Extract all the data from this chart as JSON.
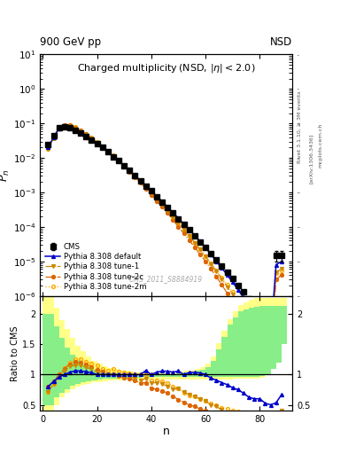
{
  "title_top_left": "900 GeV pp",
  "title_top_right": "NSD",
  "plot_title": "Charged multiplicity (NSD, |\\eta| < 2.0)",
  "xlabel": "n",
  "ylabel_main": "P_n",
  "ylabel_ratio": "Ratio to CMS",
  "rivet_label": "Rivet 3.1.10, ≥ 3M events",
  "arxiv_label": "[arXiv:1306.3436]",
  "mcplots_label": "mcplots.cern.ch",
  "watermark": "CMS_2011_S8884919",
  "cms_n": [
    2,
    4,
    6,
    8,
    10,
    12,
    14,
    16,
    18,
    20,
    22,
    24,
    26,
    28,
    30,
    32,
    34,
    36,
    38,
    40,
    42,
    44,
    46,
    48,
    50,
    52,
    54,
    56,
    58,
    60,
    62,
    64,
    66,
    68,
    70,
    72,
    74,
    76,
    78,
    80,
    82,
    84,
    86,
    88
  ],
  "cms_y": [
    0.025,
    0.045,
    0.075,
    0.082,
    0.075,
    0.063,
    0.052,
    0.042,
    0.033,
    0.026,
    0.02,
    0.015,
    0.011,
    0.0082,
    0.006,
    0.0043,
    0.0031,
    0.0022,
    0.0015,
    0.0011,
    0.00075,
    0.00052,
    0.00036,
    0.00025,
    0.00017,
    0.00012,
    8.2e-05,
    5.5e-05,
    3.7e-05,
    2.5e-05,
    1.7e-05,
    1.1e-05,
    7.5e-06,
    4.8e-06,
    3.2e-06,
    2e-06,
    1.3e-06,
    8e-07,
    5e-07,
    3e-07,
    1.9e-07,
    1.2e-07,
    1.5e-05,
    1.5e-05
  ],
  "cms_yerr": [
    0.002,
    0.002,
    0.003,
    0.003,
    0.003,
    0.002,
    0.002,
    0.002,
    0.001,
    0.001,
    0.001,
    0.0006,
    0.0004,
    0.0003,
    0.0002,
    0.00015,
    0.0001,
    8e-05,
    5e-05,
    4e-05,
    3e-05,
    2e-05,
    1.5e-05,
    1e-05,
    7e-06,
    5e-06,
    3.5e-06,
    2.5e-06,
    1.7e-06,
    1.2e-06,
    8e-07,
    5e-07,
    3.5e-07,
    2.5e-07,
    1.5e-07,
    1e-07,
    7e-08,
    4e-08,
    2.5e-08,
    1.5e-08,
    1e-08,
    7e-09,
    5e-06,
    5e-06
  ],
  "py_n": [
    2,
    4,
    6,
    8,
    10,
    12,
    14,
    16,
    18,
    20,
    22,
    24,
    26,
    28,
    30,
    32,
    34,
    36,
    38,
    40,
    42,
    44,
    46,
    48,
    50,
    52,
    54,
    56,
    58,
    60,
    62,
    64,
    66,
    68,
    70,
    72,
    74,
    76,
    78,
    80,
    82,
    84,
    86,
    88
  ],
  "py_y": [
    0.02,
    0.04,
    0.072,
    0.082,
    0.078,
    0.067,
    0.055,
    0.044,
    0.034,
    0.026,
    0.02,
    0.015,
    0.011,
    0.0082,
    0.006,
    0.0043,
    0.0031,
    0.0022,
    0.0016,
    0.0011,
    0.00078,
    0.00055,
    0.00038,
    0.00026,
    0.00018,
    0.00012,
    8.5e-05,
    5.7e-05,
    3.8e-05,
    2.5e-05,
    1.6e-05,
    1e-05,
    6.5e-06,
    4e-06,
    2.5e-06,
    1.5e-06,
    9e-07,
    5e-07,
    3e-07,
    1.8e-07,
    1e-07,
    6e-08,
    8e-06,
    1e-05
  ],
  "t1_n": [
    2,
    4,
    6,
    8,
    10,
    12,
    14,
    16,
    18,
    20,
    22,
    24,
    26,
    28,
    30,
    32,
    34,
    36,
    38,
    40,
    42,
    44,
    46,
    48,
    50,
    52,
    54,
    56,
    58,
    60,
    62,
    64,
    66,
    68,
    70,
    72,
    74,
    76,
    78,
    80,
    82,
    84,
    86,
    88
  ],
  "t1_y": [
    0.018,
    0.038,
    0.072,
    0.087,
    0.085,
    0.073,
    0.06,
    0.047,
    0.036,
    0.027,
    0.02,
    0.015,
    0.011,
    0.008,
    0.0058,
    0.0042,
    0.0029,
    0.002,
    0.0014,
    0.00095,
    0.00065,
    0.00044,
    0.00029,
    0.00019,
    0.00013,
    8.5e-05,
    5.5e-05,
    3.5e-05,
    2.2e-05,
    1.4e-05,
    8.5e-06,
    5.2e-06,
    3.1e-06,
    1.8e-06,
    1.1e-06,
    6e-07,
    3.5e-07,
    2e-07,
    1.1e-07,
    6e-08,
    3.5e-08,
    2e-08,
    5e-06,
    6e-06
  ],
  "t2c_n": [
    2,
    4,
    6,
    8,
    10,
    12,
    14,
    16,
    18,
    20,
    22,
    24,
    26,
    28,
    30,
    32,
    34,
    36,
    38,
    40,
    42,
    44,
    46,
    48,
    50,
    52,
    54,
    56,
    58,
    60,
    62,
    64,
    66,
    68,
    70,
    72,
    74,
    76,
    78,
    80,
    82,
    84,
    86,
    88
  ],
  "t2c_y": [
    0.02,
    0.04,
    0.075,
    0.09,
    0.088,
    0.076,
    0.062,
    0.049,
    0.037,
    0.028,
    0.021,
    0.015,
    0.011,
    0.008,
    0.0057,
    0.004,
    0.0028,
    0.0019,
    0.0013,
    0.00085,
    0.00057,
    0.00038,
    0.00025,
    0.00016,
    0.0001,
    6.5e-05,
    4.1e-05,
    2.6e-05,
    1.6e-05,
    1e-05,
    6e-06,
    3.6e-06,
    2.1e-06,
    1.2e-06,
    7e-07,
    4e-07,
    2.2e-07,
    1.2e-07,
    6.5e-08,
    3.5e-08,
    2e-08,
    1e-08,
    3e-06,
    4e-06
  ],
  "t2m_n": [
    2,
    4,
    6,
    8,
    10,
    12,
    14,
    16,
    18,
    20,
    22,
    24,
    26,
    28,
    30,
    32,
    34,
    36,
    38,
    40,
    42,
    44,
    46,
    48,
    50,
    52,
    54,
    56,
    58,
    60,
    62,
    64,
    66,
    68,
    70,
    72,
    74,
    76,
    78,
    80,
    82,
    84,
    86,
    88
  ],
  "t2m_y": [
    0.018,
    0.038,
    0.073,
    0.091,
    0.09,
    0.079,
    0.065,
    0.051,
    0.039,
    0.03,
    0.022,
    0.016,
    0.012,
    0.0086,
    0.0062,
    0.0044,
    0.0031,
    0.0022,
    0.0015,
    0.001,
    0.00068,
    0.00046,
    0.00031,
    0.0002,
    0.00013,
    8.4e-05,
    5.4e-05,
    3.5e-05,
    2.2e-05,
    1.4e-05,
    8.8e-06,
    5.5e-06,
    3.4e-06,
    2.1e-06,
    1.3e-06,
    7.8e-07,
    4.7e-07,
    2.8e-07,
    1.7e-07,
    1e-07,
    6e-08,
    3.5e-08,
    4.5e-06,
    5.5e-06
  ],
  "color_cms": "#000000",
  "color_py": "#0000cc",
  "color_t1": "#cc8800",
  "color_t2c": "#dd6600",
  "color_t2m": "#ffaa00",
  "ylim_main": [
    1e-06,
    10
  ],
  "ylim_ratio": [
    0.4,
    2.3
  ],
  "xlim": [
    -1,
    92
  ],
  "band_n": [
    0,
    2,
    4,
    6,
    8,
    10,
    12,
    14,
    16,
    18,
    20,
    22,
    24,
    26,
    28,
    30,
    32,
    34,
    36,
    38,
    40,
    42,
    44,
    46,
    48,
    50,
    52,
    54,
    56,
    58,
    60,
    62,
    64,
    66,
    68,
    70,
    72,
    74,
    76,
    78,
    80,
    82,
    84,
    86,
    88,
    90
  ],
  "yel_lo": [
    0.4,
    0.4,
    0.5,
    0.62,
    0.7,
    0.76,
    0.8,
    0.83,
    0.85,
    0.87,
    0.88,
    0.89,
    0.9,
    0.91,
    0.91,
    0.92,
    0.92,
    0.92,
    0.92,
    0.92,
    0.92,
    0.92,
    0.92,
    0.92,
    0.92,
    0.92,
    0.92,
    0.92,
    0.92,
    0.92,
    0.92,
    0.92,
    0.92,
    0.92,
    0.92,
    0.93,
    0.93,
    0.93,
    0.93,
    0.93,
    0.95,
    1.0,
    1.1,
    1.2,
    1.5,
    1.6
  ],
  "yel_hi": [
    2.3,
    2.3,
    2.1,
    1.9,
    1.75,
    1.6,
    1.48,
    1.38,
    1.3,
    1.23,
    1.18,
    1.14,
    1.11,
    1.09,
    1.07,
    1.06,
    1.05,
    1.04,
    1.04,
    1.03,
    1.03,
    1.03,
    1.03,
    1.04,
    1.04,
    1.05,
    1.06,
    1.07,
    1.09,
    1.12,
    1.18,
    1.3,
    1.52,
    1.72,
    1.92,
    2.05,
    2.15,
    2.2,
    2.24,
    2.26,
    2.27,
    2.27,
    2.27,
    2.27,
    2.27,
    2.27
  ],
  "grn_lo": [
    0.5,
    0.5,
    0.62,
    0.7,
    0.76,
    0.81,
    0.85,
    0.87,
    0.89,
    0.91,
    0.92,
    0.93,
    0.94,
    0.94,
    0.95,
    0.95,
    0.95,
    0.95,
    0.96,
    0.96,
    0.96,
    0.96,
    0.96,
    0.96,
    0.96,
    0.96,
    0.96,
    0.96,
    0.96,
    0.96,
    0.96,
    0.96,
    0.96,
    0.96,
    0.96,
    0.96,
    0.96,
    0.96,
    0.96,
    0.96,
    0.97,
    1.0,
    1.1,
    1.2,
    1.5,
    1.6
  ],
  "grn_hi": [
    2.0,
    2.0,
    1.8,
    1.6,
    1.45,
    1.33,
    1.24,
    1.17,
    1.12,
    1.08,
    1.05,
    1.03,
    1.02,
    1.02,
    1.01,
    1.01,
    1.01,
    1.01,
    1.01,
    1.01,
    1.01,
    1.01,
    1.01,
    1.01,
    1.01,
    1.02,
    1.03,
    1.04,
    1.06,
    1.08,
    1.12,
    1.22,
    1.42,
    1.62,
    1.82,
    1.95,
    2.04,
    2.08,
    2.11,
    2.12,
    2.13,
    2.13,
    2.13,
    2.13,
    2.13,
    2.13
  ]
}
